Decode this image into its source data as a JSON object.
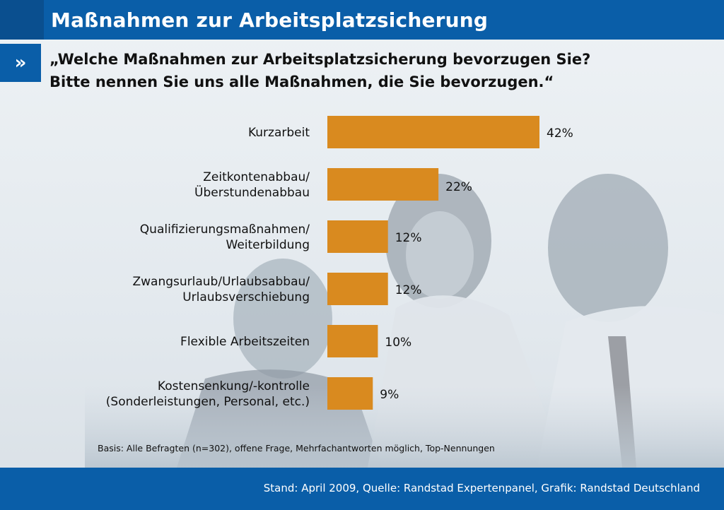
{
  "header": {
    "title": "Maßnahmen zur Arbeitsplatzsicherung",
    "arrow_glyph": "»"
  },
  "question": {
    "line1": "„Welche Maßnahmen zur Arbeitsplatzsicherung bevorzugen Sie?",
    "line2": "Bitte nennen Sie uns alle Maßnahmen, die Sie bevorzugen.“"
  },
  "chart_data": {
    "type": "bar",
    "orientation": "horizontal",
    "categories": [
      [
        "Kurzarbeit"
      ],
      [
        "Zeitkontenabbau/",
        "Überstundenabbau"
      ],
      [
        "Qualifizierungsmaßnahmen/",
        "Weiterbildung"
      ],
      [
        "Zwangsurlaub/Urlaubsabbau/",
        "Urlaubsverschiebung"
      ],
      [
        "Flexible Arbeitszeiten"
      ],
      [
        "Kostensenkung/-kontrolle",
        "(Sonderleistungen, Personal, etc.)"
      ]
    ],
    "values": [
      42,
      22,
      12,
      12,
      10,
      9
    ],
    "value_labels": [
      "42%",
      "22%",
      "12%",
      "12%",
      "10%",
      "9%"
    ],
    "unit": "%",
    "xlim": [
      0,
      50
    ],
    "bar_color": "#d98a1f",
    "grid": false,
    "legend": "none"
  },
  "notes": {
    "basis": "Basis: Alle Befragten (n=302), offene Frage, Mehrfachantworten möglich, Top-Nennungen"
  },
  "footer": {
    "source": "Stand: April 2009, Quelle: Randstad Expertenpanel, Grafik: Randstad Deutschland"
  },
  "colors": {
    "brand_blue": "#0a5ea8",
    "bar_orange": "#d98a1f"
  }
}
